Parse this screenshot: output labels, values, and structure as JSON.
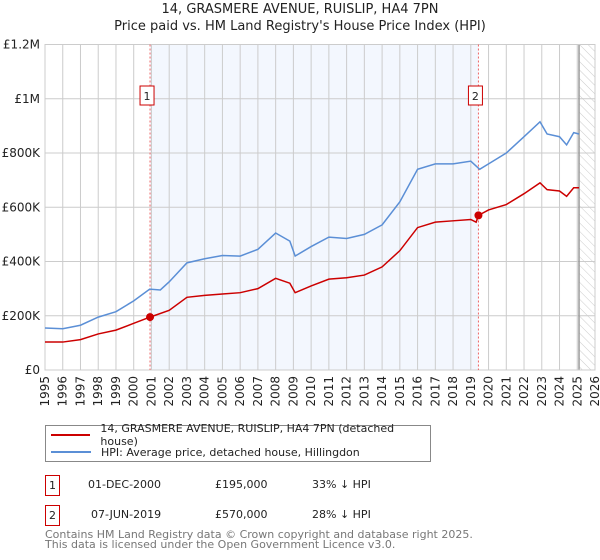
{
  "title": "14, GRASMERE AVENUE, RUISLIP, HA4 7PN",
  "subtitle": "Price paid vs. HM Land Registry's House Price Index (HPI)",
  "chart_data": {
    "type": "line",
    "title": "14, GRASMERE AVENUE, RUISLIP, HA4 7PN — Price paid vs. HM Land Registry's House Price Index (HPI)",
    "xlim": [
      1995,
      2026
    ],
    "ylim": [
      0,
      1200000
    ],
    "y_ticks": [
      {
        "v": 0,
        "label": "£0"
      },
      {
        "v": 200000,
        "label": "£200K"
      },
      {
        "v": 400000,
        "label": "£400K"
      },
      {
        "v": 600000,
        "label": "£600K"
      },
      {
        "v": 800000,
        "label": "£800K"
      },
      {
        "v": 1000000,
        "label": "£1M"
      },
      {
        "v": 1200000,
        "label": "£1.2M"
      }
    ],
    "x_ticks": [
      "1995",
      "1996",
      "1997",
      "1998",
      "1999",
      "2000",
      "2001",
      "2002",
      "2003",
      "2004",
      "2005",
      "2006",
      "2007",
      "2008",
      "2009",
      "2010",
      "2011",
      "2012",
      "2013",
      "2014",
      "2015",
      "2016",
      "2017",
      "2018",
      "2019",
      "2020",
      "2021",
      "2022",
      "2023",
      "2024",
      "2025",
      "2026"
    ],
    "grid": true,
    "shaded_range": [
      2000.92,
      2019.43
    ],
    "hatched_from": 2025.1,
    "series": [
      {
        "name": "14, GRASMERE AVENUE, RUISLIP, HA4 7PN (detached house)",
        "color": "#cc0000",
        "x": [
          1995,
          1996,
          1997,
          1998,
          1999,
          2000,
          2000.92,
          2002,
          2003,
          2004,
          2005,
          2006,
          2007,
          2008,
          2008.8,
          2009.1,
          2010,
          2011,
          2012,
          2013,
          2014,
          2015,
          2016,
          2017,
          2018,
          2019,
          2019.3,
          2019.43,
          2020,
          2021,
          2022,
          2022.9,
          2023.3,
          2024,
          2024.4,
          2024.8,
          2025.1
        ],
        "y": [
          103000,
          103000,
          112000,
          133000,
          147000,
          172000,
          195000,
          220000,
          268000,
          275000,
          280000,
          285000,
          300000,
          338000,
          320000,
          285000,
          310000,
          335000,
          340000,
          350000,
          380000,
          440000,
          525000,
          545000,
          550000,
          555000,
          545000,
          570000,
          590000,
          610000,
          650000,
          690000,
          665000,
          660000,
          640000,
          672000,
          672000
        ]
      },
      {
        "name": "HPI: Average price, detached house, Hillingdon",
        "color": "#5b8fd6",
        "x": [
          1995,
          1996,
          1997,
          1998,
          1999,
          2000,
          2000.9,
          2001.5,
          2002,
          2003,
          2004,
          2005,
          2006,
          2007,
          2008,
          2008.8,
          2009.1,
          2010,
          2011,
          2012,
          2013,
          2014,
          2015,
          2016,
          2017,
          2018,
          2019,
          2019.5,
          2020,
          2021,
          2022,
          2022.9,
          2023.3,
          2024,
          2024.4,
          2024.8,
          2025.1
        ],
        "y": [
          155000,
          152000,
          165000,
          195000,
          215000,
          255000,
          298000,
          295000,
          325000,
          395000,
          410000,
          422000,
          420000,
          445000,
          505000,
          475000,
          420000,
          455000,
          490000,
          485000,
          500000,
          535000,
          620000,
          740000,
          760000,
          760000,
          770000,
          740000,
          760000,
          800000,
          860000,
          915000,
          870000,
          860000,
          830000,
          875000,
          870000
        ]
      }
    ],
    "markers": [
      {
        "label": "1",
        "x": 2000.92,
        "y": 195000
      },
      {
        "label": "2",
        "x": 2019.43,
        "y": 570000
      }
    ]
  },
  "legend": {
    "property": "14, GRASMERE AVENUE, RUISLIP, HA4 7PN (detached house)",
    "hpi": "HPI: Average price, detached house, Hillingdon"
  },
  "transactions": [
    {
      "num": "1",
      "date": "01-DEC-2000",
      "price": "£195,000",
      "delta": "33% ↓ HPI"
    },
    {
      "num": "2",
      "date": "07-JUN-2019",
      "price": "£570,000",
      "delta": "28% ↓ HPI"
    }
  ],
  "footer": {
    "line1": "Contains HM Land Registry data © Crown copyright and database right 2025.",
    "line2": "This data is licensed under the Open Government Licence v3.0."
  }
}
